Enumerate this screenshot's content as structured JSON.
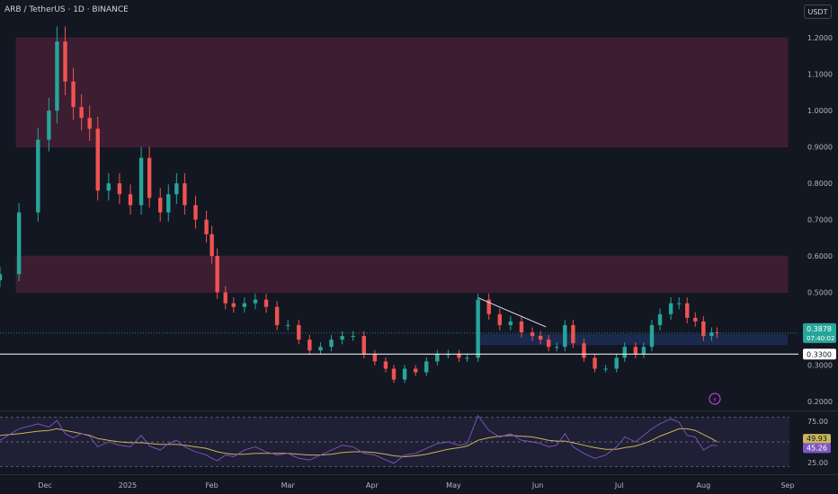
{
  "header": {
    "title": "ARB / TetherUS · 1D · BINANCE",
    "currency_button": "USDT"
  },
  "colors": {
    "background": "#131722",
    "up": "#26a69a",
    "down": "#ef5350",
    "zone": "#5e2240",
    "support_zone": "#1f2d57",
    "rsi": "#7e57c2",
    "rsi_ma": "#c9b45a"
  },
  "chart_data": [
    {
      "type": "candlestick",
      "ylim": [
        0.18,
        1.25
      ],
      "y_ticks": [
        "1.2000",
        "1.1000",
        "1.0000",
        "0.9000",
        "0.8000",
        "0.7000",
        "0.6000",
        "0.5000",
        "0.4000",
        "0.3000",
        "0.2000"
      ],
      "x_ticks": [
        "Dec",
        "2025",
        "Feb",
        "Mar",
        "Apr",
        "May",
        "Jun",
        "Jul",
        "Aug",
        "Sep"
      ],
      "price_labels": [
        {
          "value": 0.3878,
          "text": "0.3878",
          "sub": "07:40:02",
          "color": "#26a69a"
        },
        {
          "value": 0.33,
          "text": "0.3300",
          "color": "#ffffff"
        }
      ],
      "zones": [
        {
          "from": 0.9,
          "to": 1.2,
          "name": "resistance-zone-upper"
        },
        {
          "from": 0.5,
          "to": 0.6,
          "name": "resistance-zone-lower"
        },
        {
          "from": 0.355,
          "to": 0.385,
          "name": "support-zone",
          "start": "2025-05-10"
        }
      ],
      "horizontal_line": 0.33,
      "trendline": [
        {
          "date": "2025-05-10",
          "value": 0.485
        },
        {
          "date": "2025-06-04",
          "value": 0.405
        }
      ],
      "series": [
        [
          "2024-11-15",
          0.55
        ],
        [
          "2024-11-22",
          0.72
        ],
        [
          "2024-11-29",
          0.92
        ],
        [
          "2024-12-03",
          1.0
        ],
        [
          "2024-12-06",
          1.19
        ],
        [
          "2024-12-09",
          1.08
        ],
        [
          "2024-12-12",
          1.01
        ],
        [
          "2024-12-15",
          0.98
        ],
        [
          "2024-12-18",
          0.95
        ],
        [
          "2024-12-21",
          0.78
        ],
        [
          "2024-12-25",
          0.8
        ],
        [
          "2024-12-29",
          0.77
        ],
        [
          "2025-01-02",
          0.74
        ],
        [
          "2025-01-06",
          0.87
        ],
        [
          "2025-01-09",
          0.76
        ],
        [
          "2025-01-13",
          0.72
        ],
        [
          "2025-01-16",
          0.77
        ],
        [
          "2025-01-19",
          0.8
        ],
        [
          "2025-01-22",
          0.74
        ],
        [
          "2025-01-26",
          0.7
        ],
        [
          "2025-01-30",
          0.66
        ],
        [
          "2025-02-01",
          0.6
        ],
        [
          "2025-02-03",
          0.5
        ],
        [
          "2025-02-06",
          0.47
        ],
        [
          "2025-02-09",
          0.46
        ],
        [
          "2025-02-13",
          0.47
        ],
        [
          "2025-02-17",
          0.48
        ],
        [
          "2025-02-21",
          0.46
        ],
        [
          "2025-02-25",
          0.41
        ],
        [
          "2025-03-01",
          0.41
        ],
        [
          "2025-03-05",
          0.37
        ],
        [
          "2025-03-09",
          0.34
        ],
        [
          "2025-03-13",
          0.35
        ],
        [
          "2025-03-17",
          0.37
        ],
        [
          "2025-03-21",
          0.38
        ],
        [
          "2025-03-25",
          0.38
        ],
        [
          "2025-03-29",
          0.33
        ],
        [
          "2025-04-02",
          0.31
        ],
        [
          "2025-04-06",
          0.29
        ],
        [
          "2025-04-09",
          0.26
        ],
        [
          "2025-04-13",
          0.29
        ],
        [
          "2025-04-17",
          0.28
        ],
        [
          "2025-04-21",
          0.31
        ],
        [
          "2025-04-25",
          0.33
        ],
        [
          "2025-04-29",
          0.33
        ],
        [
          "2025-05-03",
          0.32
        ],
        [
          "2025-05-06",
          0.32
        ],
        [
          "2025-05-10",
          0.48
        ],
        [
          "2025-05-14",
          0.44
        ],
        [
          "2025-05-18",
          0.41
        ],
        [
          "2025-05-22",
          0.42
        ],
        [
          "2025-05-26",
          0.39
        ],
        [
          "2025-05-30",
          0.38
        ],
        [
          "2025-06-02",
          0.37
        ],
        [
          "2025-06-05",
          0.35
        ],
        [
          "2025-06-08",
          0.35
        ],
        [
          "2025-06-11",
          0.41
        ],
        [
          "2025-06-14",
          0.36
        ],
        [
          "2025-06-18",
          0.32
        ],
        [
          "2025-06-22",
          0.29
        ],
        [
          "2025-06-26",
          0.29
        ],
        [
          "2025-06-30",
          0.32
        ],
        [
          "2025-07-03",
          0.35
        ],
        [
          "2025-07-07",
          0.33
        ],
        [
          "2025-07-10",
          0.35
        ],
        [
          "2025-07-13",
          0.41
        ],
        [
          "2025-07-16",
          0.44
        ],
        [
          "2025-07-20",
          0.47
        ],
        [
          "2025-07-23",
          0.47
        ],
        [
          "2025-07-26",
          0.43
        ],
        [
          "2025-07-29",
          0.42
        ],
        [
          "2025-08-01",
          0.38
        ],
        [
          "2025-08-04",
          0.39
        ],
        [
          "2025-08-06",
          0.3878
        ]
      ]
    },
    {
      "type": "line",
      "name": "RSI",
      "ylim": [
        15,
        85
      ],
      "y_ticks": [
        "75.00",
        "25.00"
      ],
      "levels": [
        80,
        50,
        20
      ],
      "value_labels": [
        {
          "value": 49.93,
          "text": "49.93",
          "series": "ma"
        },
        {
          "value": 45.26,
          "text": "45.26",
          "series": "rsi"
        }
      ],
      "rsi": [
        [
          "2024-11-15",
          52
        ],
        [
          "2024-11-22",
          66
        ],
        [
          "2024-11-29",
          72
        ],
        [
          "2024-12-03",
          68
        ],
        [
          "2024-12-06",
          76
        ],
        [
          "2024-12-09",
          60
        ],
        [
          "2024-12-12",
          55
        ],
        [
          "2024-12-15",
          60
        ],
        [
          "2024-12-18",
          57
        ],
        [
          "2024-12-21",
          44
        ],
        [
          "2024-12-25",
          50
        ],
        [
          "2024-12-29",
          46
        ],
        [
          "2025-01-02",
          44
        ],
        [
          "2025-01-06",
          58
        ],
        [
          "2025-01-09",
          45
        ],
        [
          "2025-01-13",
          40
        ],
        [
          "2025-01-16",
          48
        ],
        [
          "2025-01-19",
          52
        ],
        [
          "2025-01-22",
          44
        ],
        [
          "2025-01-26",
          38
        ],
        [
          "2025-01-30",
          34
        ],
        [
          "2025-02-01",
          30
        ],
        [
          "2025-02-03",
          27
        ],
        [
          "2025-02-06",
          34
        ],
        [
          "2025-02-09",
          32
        ],
        [
          "2025-02-13",
          40
        ],
        [
          "2025-02-17",
          44
        ],
        [
          "2025-02-21",
          38
        ],
        [
          "2025-02-25",
          34
        ],
        [
          "2025-03-01",
          36
        ],
        [
          "2025-03-05",
          30
        ],
        [
          "2025-03-09",
          28
        ],
        [
          "2025-03-13",
          34
        ],
        [
          "2025-03-17",
          40
        ],
        [
          "2025-03-21",
          46
        ],
        [
          "2025-03-25",
          44
        ],
        [
          "2025-03-29",
          36
        ],
        [
          "2025-04-02",
          34
        ],
        [
          "2025-04-06",
          28
        ],
        [
          "2025-04-09",
          24
        ],
        [
          "2025-04-13",
          34
        ],
        [
          "2025-04-17",
          36
        ],
        [
          "2025-04-21",
          42
        ],
        [
          "2025-04-25",
          48
        ],
        [
          "2025-04-29",
          50
        ],
        [
          "2025-05-03",
          46
        ],
        [
          "2025-05-06",
          48
        ],
        [
          "2025-05-10",
          82
        ],
        [
          "2025-05-14",
          64
        ],
        [
          "2025-05-18",
          56
        ],
        [
          "2025-05-22",
          60
        ],
        [
          "2025-05-26",
          52
        ],
        [
          "2025-05-30",
          50
        ],
        [
          "2025-06-02",
          48
        ],
        [
          "2025-06-05",
          44
        ],
        [
          "2025-06-08",
          46
        ],
        [
          "2025-06-11",
          60
        ],
        [
          "2025-06-14",
          44
        ],
        [
          "2025-06-18",
          36
        ],
        [
          "2025-06-22",
          30
        ],
        [
          "2025-06-26",
          34
        ],
        [
          "2025-06-30",
          44
        ],
        [
          "2025-07-03",
          56
        ],
        [
          "2025-07-07",
          50
        ],
        [
          "2025-07-10",
          58
        ],
        [
          "2025-07-13",
          66
        ],
        [
          "2025-07-16",
          72
        ],
        [
          "2025-07-20",
          78
        ],
        [
          "2025-07-23",
          74
        ],
        [
          "2025-07-26",
          58
        ],
        [
          "2025-07-29",
          56
        ],
        [
          "2025-08-01",
          40
        ],
        [
          "2025-08-04",
          46
        ],
        [
          "2025-08-06",
          45.26
        ]
      ],
      "ma": [
        [
          "2024-11-15",
          58
        ],
        [
          "2024-11-22",
          60
        ],
        [
          "2024-11-29",
          63
        ],
        [
          "2024-12-03",
          64
        ],
        [
          "2024-12-06",
          66
        ],
        [
          "2024-12-09",
          64
        ],
        [
          "2024-12-12",
          62
        ],
        [
          "2024-12-15",
          60
        ],
        [
          "2024-12-18",
          58
        ],
        [
          "2024-12-21",
          54
        ],
        [
          "2024-12-25",
          52
        ],
        [
          "2024-12-29",
          50
        ],
        [
          "2025-01-02",
          49
        ],
        [
          "2025-01-06",
          49
        ],
        [
          "2025-01-09",
          48
        ],
        [
          "2025-01-13",
          47
        ],
        [
          "2025-01-16",
          47
        ],
        [
          "2025-01-19",
          47
        ],
        [
          "2025-01-22",
          46
        ],
        [
          "2025-01-26",
          44
        ],
        [
          "2025-01-30",
          42
        ],
        [
          "2025-02-01",
          40
        ],
        [
          "2025-02-03",
          38
        ],
        [
          "2025-02-06",
          36
        ],
        [
          "2025-02-09",
          35
        ],
        [
          "2025-02-13",
          35
        ],
        [
          "2025-02-17",
          36
        ],
        [
          "2025-02-21",
          36
        ],
        [
          "2025-02-25",
          36
        ],
        [
          "2025-03-01",
          36
        ],
        [
          "2025-03-05",
          35
        ],
        [
          "2025-03-09",
          34
        ],
        [
          "2025-03-13",
          34
        ],
        [
          "2025-03-17",
          35
        ],
        [
          "2025-03-21",
          37
        ],
        [
          "2025-03-25",
          38
        ],
        [
          "2025-03-29",
          38
        ],
        [
          "2025-04-02",
          37
        ],
        [
          "2025-04-06",
          35
        ],
        [
          "2025-04-09",
          33
        ],
        [
          "2025-04-13",
          32
        ],
        [
          "2025-04-17",
          33
        ],
        [
          "2025-04-21",
          35
        ],
        [
          "2025-04-25",
          38
        ],
        [
          "2025-04-29",
          41
        ],
        [
          "2025-05-03",
          43
        ],
        [
          "2025-05-06",
          45
        ],
        [
          "2025-05-10",
          52
        ],
        [
          "2025-05-14",
          55
        ],
        [
          "2025-05-18",
          57
        ],
        [
          "2025-05-22",
          58
        ],
        [
          "2025-05-26",
          57
        ],
        [
          "2025-05-30",
          56
        ],
        [
          "2025-06-02",
          54
        ],
        [
          "2025-06-05",
          52
        ],
        [
          "2025-06-08",
          51
        ],
        [
          "2025-06-11",
          51
        ],
        [
          "2025-06-14",
          49
        ],
        [
          "2025-06-18",
          46
        ],
        [
          "2025-06-22",
          43
        ],
        [
          "2025-06-26",
          41
        ],
        [
          "2025-06-30",
          41
        ],
        [
          "2025-07-03",
          43
        ],
        [
          "2025-07-07",
          45
        ],
        [
          "2025-07-10",
          48
        ],
        [
          "2025-07-13",
          52
        ],
        [
          "2025-07-16",
          57
        ],
        [
          "2025-07-20",
          62
        ],
        [
          "2025-07-23",
          66
        ],
        [
          "2025-07-26",
          66
        ],
        [
          "2025-07-29",
          64
        ],
        [
          "2025-08-01",
          59
        ],
        [
          "2025-08-04",
          54
        ],
        [
          "2025-08-06",
          49.93
        ]
      ]
    }
  ]
}
